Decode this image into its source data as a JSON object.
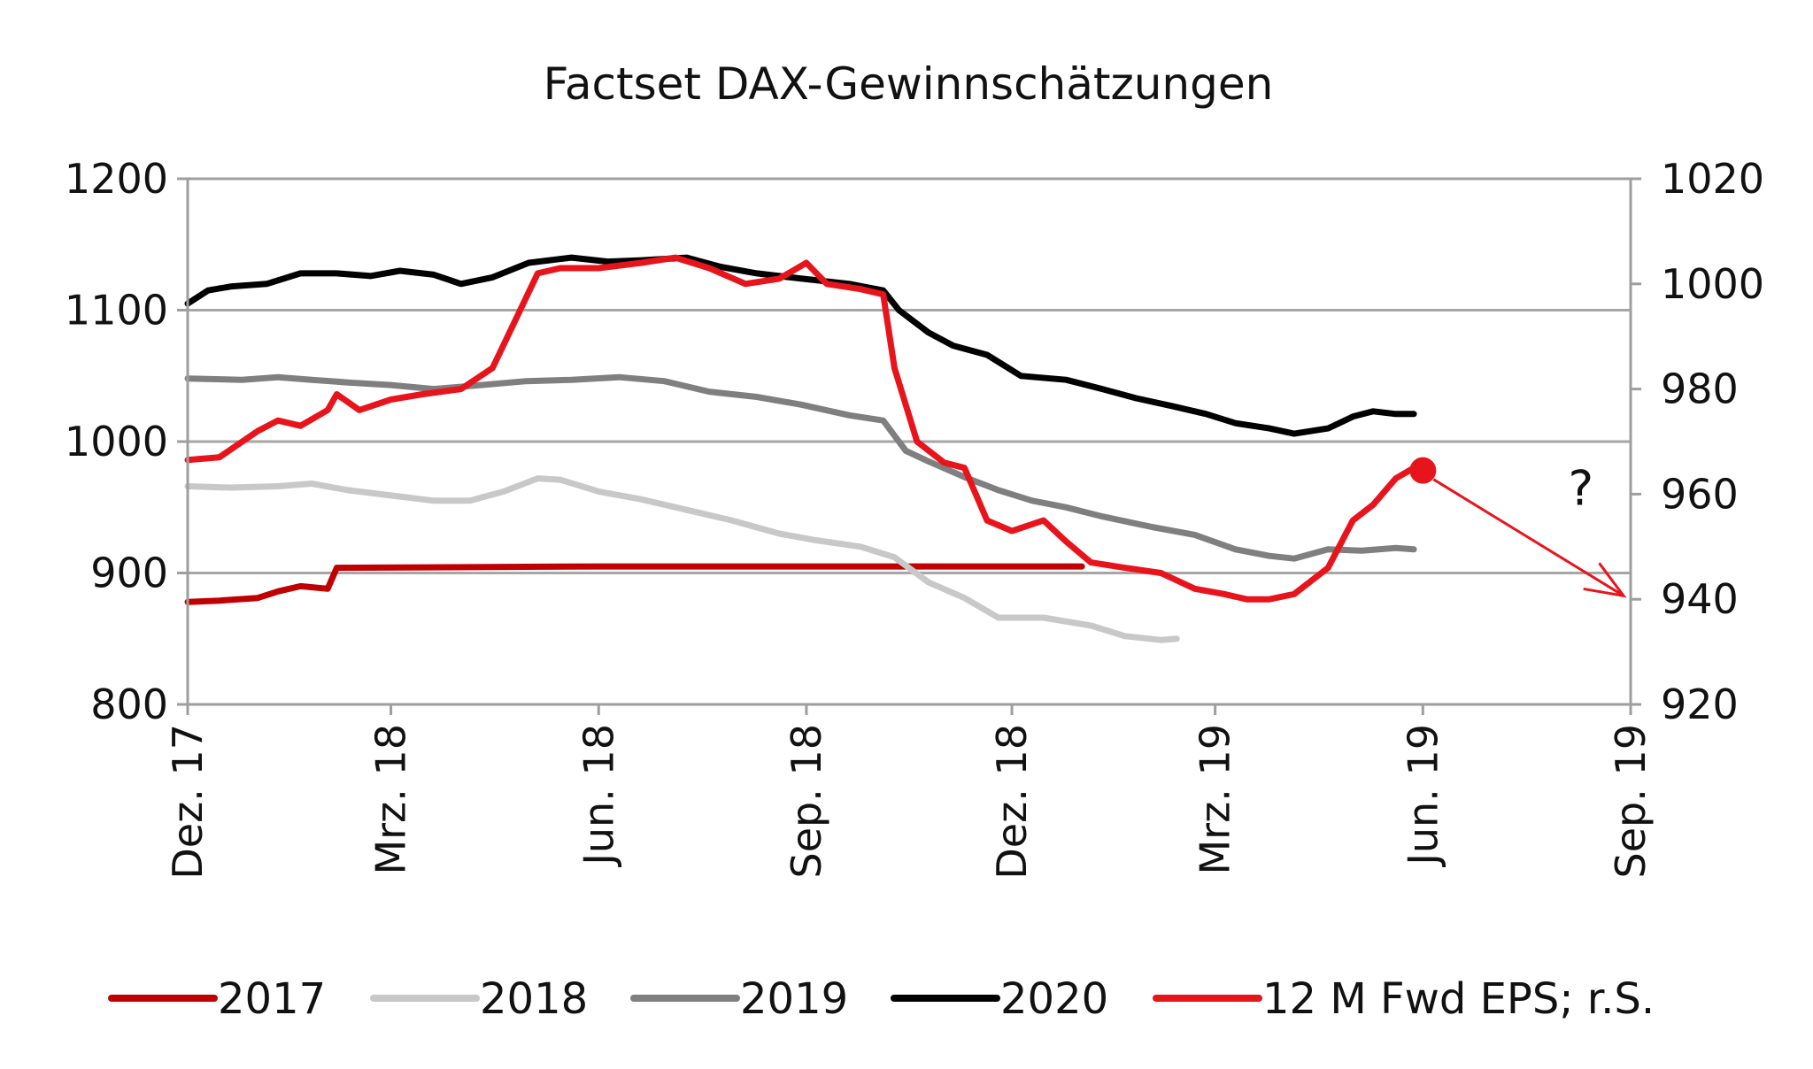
{
  "chart_data": {
    "type": "line",
    "title": "Factset DAX-Gewinnschätzungen",
    "x_axis": {
      "tick_labels": [
        "Dez. 17",
        "Mrz. 18",
        "Jun. 18",
        "Sep. 18",
        "Dez. 18",
        "Mrz. 19",
        "Jun. 19",
        "Sep. 19"
      ],
      "tick_dates": [
        "2017-12-01",
        "2018-03-01",
        "2018-06-01",
        "2018-09-01",
        "2018-12-01",
        "2019-03-01",
        "2019-06-01",
        "2019-09-01"
      ],
      "range": [
        "2017-12-01",
        "2019-09-01"
      ]
    },
    "y_left": {
      "range": [
        800,
        1200
      ],
      "ticks": [
        "800",
        "900",
        "1000",
        "1100",
        "1200"
      ]
    },
    "y_right": {
      "range": [
        920,
        1020
      ],
      "ticks": [
        "920",
        "940",
        "960",
        "980",
        "1000",
        "1020"
      ]
    },
    "grid": "horizontal",
    "legend_position": "bottom",
    "series": [
      {
        "name": "2017",
        "axis": "left",
        "color": "#c00000",
        "points": [
          [
            "2017-12-01",
            878
          ],
          [
            "2017-12-15",
            879
          ],
          [
            "2018-01-01",
            881
          ],
          [
            "2018-01-10",
            886
          ],
          [
            "2018-01-20",
            890
          ],
          [
            "2018-02-01",
            888
          ],
          [
            "2018-02-05",
            904
          ],
          [
            "2018-06-01",
            905
          ],
          [
            "2018-09-01",
            905
          ],
          [
            "2018-12-01",
            905
          ],
          [
            "2019-01-01",
            905
          ]
        ]
      },
      {
        "name": "2018",
        "axis": "left",
        "color": "#c8c8c8",
        "points": [
          [
            "2017-12-01",
            966
          ],
          [
            "2017-12-20",
            965
          ],
          [
            "2018-01-10",
            966
          ],
          [
            "2018-01-25",
            968
          ],
          [
            "2018-02-10",
            963
          ],
          [
            "2018-03-01",
            959
          ],
          [
            "2018-03-20",
            955
          ],
          [
            "2018-04-05",
            955
          ],
          [
            "2018-04-20",
            962
          ],
          [
            "2018-05-05",
            972
          ],
          [
            "2018-05-15",
            971
          ],
          [
            "2018-06-01",
            962
          ],
          [
            "2018-06-20",
            956
          ],
          [
            "2018-07-10",
            948
          ],
          [
            "2018-07-30",
            940
          ],
          [
            "2018-08-20",
            930
          ],
          [
            "2018-09-05",
            925
          ],
          [
            "2018-09-25",
            920
          ],
          [
            "2018-10-10",
            912
          ],
          [
            "2018-10-25",
            893
          ],
          [
            "2018-11-10",
            881
          ],
          [
            "2018-11-25",
            866
          ],
          [
            "2018-12-15",
            866
          ],
          [
            "2019-01-05",
            860
          ],
          [
            "2019-01-20",
            852
          ],
          [
            "2019-02-05",
            849
          ],
          [
            "2019-02-12",
            850
          ]
        ]
      },
      {
        "name": "2019",
        "axis": "left",
        "color": "#7f7f7f",
        "points": [
          [
            "2017-12-01",
            1048
          ],
          [
            "2017-12-25",
            1047
          ],
          [
            "2018-01-10",
            1049
          ],
          [
            "2018-01-25",
            1047
          ],
          [
            "2018-02-10",
            1045
          ],
          [
            "2018-03-01",
            1043
          ],
          [
            "2018-03-20",
            1040
          ],
          [
            "2018-04-10",
            1043
          ],
          [
            "2018-04-30",
            1046
          ],
          [
            "2018-05-20",
            1047
          ],
          [
            "2018-06-10",
            1049
          ],
          [
            "2018-06-30",
            1046
          ],
          [
            "2018-07-20",
            1038
          ],
          [
            "2018-08-10",
            1034
          ],
          [
            "2018-08-30",
            1028
          ],
          [
            "2018-09-20",
            1020
          ],
          [
            "2018-10-05",
            1016
          ],
          [
            "2018-10-15",
            993
          ],
          [
            "2018-10-25",
            985
          ],
          [
            "2018-11-10",
            973
          ],
          [
            "2018-11-25",
            963
          ],
          [
            "2018-12-10",
            955
          ],
          [
            "2018-12-25",
            950
          ],
          [
            "2019-01-10",
            943
          ],
          [
            "2019-02-01",
            935
          ],
          [
            "2019-02-20",
            929
          ],
          [
            "2019-03-10",
            918
          ],
          [
            "2019-03-25",
            913
          ],
          [
            "2019-04-05",
            911
          ],
          [
            "2019-04-20",
            918
          ],
          [
            "2019-05-05",
            917
          ],
          [
            "2019-05-20",
            919
          ],
          [
            "2019-05-28",
            918
          ]
        ]
      },
      {
        "name": "2020",
        "axis": "left",
        "color": "#000000",
        "points": [
          [
            "2017-12-01",
            1105
          ],
          [
            "2017-12-10",
            1115
          ],
          [
            "2017-12-20",
            1118
          ],
          [
            "2018-01-05",
            1120
          ],
          [
            "2018-01-20",
            1128
          ],
          [
            "2018-02-05",
            1128
          ],
          [
            "2018-02-20",
            1126
          ],
          [
            "2018-03-05",
            1130
          ],
          [
            "2018-03-20",
            1127
          ],
          [
            "2018-04-01",
            1120
          ],
          [
            "2018-04-15",
            1125
          ],
          [
            "2018-05-01",
            1136
          ],
          [
            "2018-05-20",
            1140
          ],
          [
            "2018-06-05",
            1137
          ],
          [
            "2018-06-20",
            1138
          ],
          [
            "2018-07-10",
            1140
          ],
          [
            "2018-07-25",
            1133
          ],
          [
            "2018-08-10",
            1128
          ],
          [
            "2018-08-30",
            1124
          ],
          [
            "2018-09-20",
            1120
          ],
          [
            "2018-10-05",
            1115
          ],
          [
            "2018-10-12",
            1100
          ],
          [
            "2018-10-25",
            1083
          ],
          [
            "2018-11-05",
            1073
          ],
          [
            "2018-11-20",
            1066
          ],
          [
            "2018-12-05",
            1050
          ],
          [
            "2018-12-25",
            1047
          ],
          [
            "2019-01-10",
            1040
          ],
          [
            "2019-01-25",
            1033
          ],
          [
            "2019-02-10",
            1027
          ],
          [
            "2019-02-25",
            1021
          ],
          [
            "2019-03-10",
            1014
          ],
          [
            "2019-03-25",
            1010
          ],
          [
            "2019-04-05",
            1006
          ],
          [
            "2019-04-20",
            1010
          ],
          [
            "2019-05-01",
            1019
          ],
          [
            "2019-05-10",
            1023
          ],
          [
            "2019-05-20",
            1021
          ],
          [
            "2019-05-28",
            1021
          ]
        ]
      },
      {
        "name": "12 M Fwd EPS; r.S.",
        "axis": "right",
        "color": "#e8141c",
        "points": [
          [
            "2017-12-01",
            966.5
          ],
          [
            "2017-12-15",
            967
          ],
          [
            "2018-01-01",
            972
          ],
          [
            "2018-01-10",
            974
          ],
          [
            "2018-01-20",
            973
          ],
          [
            "2018-02-01",
            976
          ],
          [
            "2018-02-05",
            979
          ],
          [
            "2018-02-15",
            976
          ],
          [
            "2018-03-01",
            978
          ],
          [
            "2018-03-15",
            979
          ],
          [
            "2018-04-01",
            980
          ],
          [
            "2018-04-15",
            984
          ],
          [
            "2018-04-25",
            993
          ],
          [
            "2018-05-05",
            1002
          ],
          [
            "2018-05-15",
            1003
          ],
          [
            "2018-06-01",
            1003
          ],
          [
            "2018-06-20",
            1004
          ],
          [
            "2018-07-05",
            1005
          ],
          [
            "2018-07-20",
            1003
          ],
          [
            "2018-08-05",
            1000
          ],
          [
            "2018-08-20",
            1001
          ],
          [
            "2018-09-01",
            1004
          ],
          [
            "2018-09-10",
            1000
          ],
          [
            "2018-09-25",
            999
          ],
          [
            "2018-10-05",
            998
          ],
          [
            "2018-10-10",
            984
          ],
          [
            "2018-10-20",
            970
          ],
          [
            "2018-11-01",
            966
          ],
          [
            "2018-11-10",
            965
          ],
          [
            "2018-11-20",
            955
          ],
          [
            "2018-12-01",
            953
          ],
          [
            "2018-12-15",
            955
          ],
          [
            "2018-12-25",
            951
          ],
          [
            "2019-01-05",
            947
          ],
          [
            "2019-01-20",
            946
          ],
          [
            "2019-02-05",
            945
          ],
          [
            "2019-02-20",
            942
          ],
          [
            "2019-03-05",
            941
          ],
          [
            "2019-03-15",
            940
          ],
          [
            "2019-03-25",
            940
          ],
          [
            "2019-04-05",
            941
          ],
          [
            "2019-04-20",
            946
          ],
          [
            "2019-05-01",
            955
          ],
          [
            "2019-05-10",
            958
          ],
          [
            "2019-05-20",
            963
          ],
          [
            "2019-05-28",
            965
          ]
        ]
      }
    ],
    "annotations": [
      {
        "type": "marker",
        "series": "12 M Fwd EPS; r.S.",
        "date": "2019-06-01",
        "value": 964.5,
        "color": "#e8141c"
      },
      {
        "type": "arrow",
        "from": [
          "2019-06-01",
          964.5
        ],
        "to": [
          "2019-09-01",
          940
        ],
        "color": "#e8141c"
      },
      {
        "type": "text",
        "text": "?",
        "date": "2019-08-10",
        "value": 958
      }
    ]
  }
}
